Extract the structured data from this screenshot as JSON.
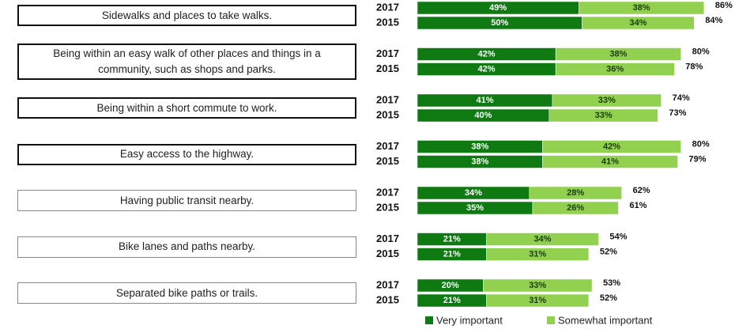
{
  "chart_data": {
    "type": "stacked_hbar",
    "categories": [
      "Sidewalks and places to take walks.",
      "Being within an easy walk of other places and things in a community, such as shops and parks.",
      "Being within a short commute to work.",
      "Easy access to the highway.",
      "Having public transit nearby.",
      "Bike lanes and paths nearby.",
      "Separated bike paths or trails."
    ],
    "years": [
      "2017",
      "2015"
    ],
    "series": [
      {
        "name": "Very important",
        "color": "#0f7a12",
        "values": [
          [
            49,
            50
          ],
          [
            42,
            42
          ],
          [
            41,
            40
          ],
          [
            38,
            38
          ],
          [
            34,
            35
          ],
          [
            21,
            21
          ],
          [
            20,
            21
          ]
        ],
        "value_labels": [
          [
            "49%",
            "50%"
          ],
          [
            "42%",
            "42%"
          ],
          [
            "41%",
            "40%"
          ],
          [
            "38%",
            "38%"
          ],
          [
            "34%",
            "35%"
          ],
          [
            "21%",
            "21%"
          ],
          [
            "20%",
            "21%"
          ]
        ]
      },
      {
        "name": "Somewhat important",
        "color": "#92d050",
        "values": [
          [
            38,
            34
          ],
          [
            38,
            36
          ],
          [
            33,
            33
          ],
          [
            42,
            41
          ],
          [
            28,
            26
          ],
          [
            34,
            31
          ],
          [
            33,
            31
          ]
        ],
        "value_labels": [
          [
            "38%",
            "34%"
          ],
          [
            "38%",
            "36%"
          ],
          [
            "33%",
            "33%"
          ],
          [
            "42%",
            "41%"
          ],
          [
            "28%",
            "26%"
          ],
          [
            "34%",
            "31%"
          ],
          [
            "33%",
            "31%"
          ]
        ]
      }
    ],
    "totals": [
      [
        86,
        84
      ],
      [
        80,
        78
      ],
      [
        74,
        73
      ],
      [
        80,
        79
      ],
      [
        62,
        61
      ],
      [
        54,
        52
      ],
      [
        53,
        52
      ]
    ],
    "total_labels": [
      [
        "86%",
        "84%"
      ],
      [
        "80%",
        "78%"
      ],
      [
        "74%",
        "73%"
      ],
      [
        "80%",
        "79%"
      ],
      [
        "62%",
        "61%"
      ],
      [
        "54%",
        "52%"
      ],
      [
        "53%",
        "52%"
      ]
    ]
  }
}
